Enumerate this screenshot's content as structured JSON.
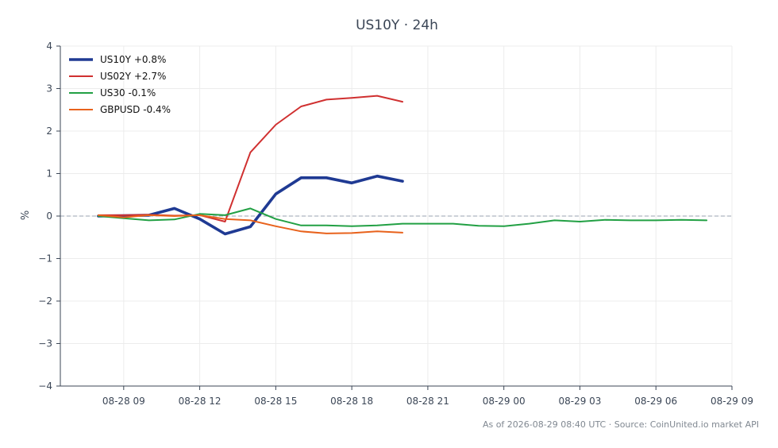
{
  "chart_data": {
    "type": "line",
    "title": "US10Y · 24h",
    "xlabel": "",
    "ylabel": "%",
    "ylim": [
      -4,
      4
    ],
    "xlim": [
      "2026-08-28 06:30",
      "2026-08-29 09:00"
    ],
    "x_ticks": [
      {
        "t": "2026-08-28 09:00",
        "label": "08-28 09"
      },
      {
        "t": "2026-08-28 12:00",
        "label": "08-28 12"
      },
      {
        "t": "2026-08-28 15:00",
        "label": "08-28 15"
      },
      {
        "t": "2026-08-28 18:00",
        "label": "08-28 18"
      },
      {
        "t": "2026-08-28 21:00",
        "label": "08-28 21"
      },
      {
        "t": "2026-08-29 00:00",
        "label": "08-29 00"
      },
      {
        "t": "2026-08-29 03:00",
        "label": "08-29 03"
      },
      {
        "t": "2026-08-29 06:00",
        "label": "08-29 06"
      },
      {
        "t": "2026-08-29 09:00",
        "label": "08-29 09"
      }
    ],
    "y_ticks": [
      4,
      3,
      2,
      1,
      0,
      -1,
      -2,
      -3,
      -4
    ],
    "y_tick_labels": [
      "4",
      "3",
      "2",
      "1",
      "0",
      "−1",
      "−2",
      "−3",
      "−4"
    ],
    "grid": true,
    "zero_line": true,
    "legend_position": "top-left",
    "series": [
      {
        "name": "US10Y +0.8%",
        "color": "#1f3a93",
        "emphasis": true,
        "x": [
          "2026-08-28 08:00",
          "2026-08-28 09:00",
          "2026-08-28 10:00",
          "2026-08-28 11:00",
          "2026-08-28 12:00",
          "2026-08-28 13:00",
          "2026-08-28 14:00",
          "2026-08-28 15:00",
          "2026-08-28 16:00",
          "2026-08-28 17:00",
          "2026-08-28 18:00",
          "2026-08-28 19:00",
          "2026-08-28 20:00"
        ],
        "values": [
          0.0,
          0.01,
          0.02,
          0.18,
          -0.07,
          -0.42,
          -0.25,
          0.52,
          0.9,
          0.9,
          0.78,
          0.94,
          0.82
        ]
      },
      {
        "name": "US02Y +2.7%",
        "color": "#d03030",
        "emphasis": false,
        "x": [
          "2026-08-28 08:00",
          "2026-08-28 09:00",
          "2026-08-28 10:00",
          "2026-08-28 11:00",
          "2026-08-28 12:00",
          "2026-08-28 13:00",
          "2026-08-28 14:00",
          "2026-08-28 15:00",
          "2026-08-28 16:00",
          "2026-08-28 17:00",
          "2026-08-28 18:00",
          "2026-08-28 19:00",
          "2026-08-28 20:00"
        ],
        "values": [
          0.02,
          0.02,
          0.03,
          0.01,
          0.02,
          -0.13,
          1.5,
          2.15,
          2.58,
          2.74,
          2.78,
          2.83,
          2.69
        ]
      },
      {
        "name": "US30 -0.1%",
        "color": "#22a044",
        "emphasis": false,
        "x": [
          "2026-08-28 08:00",
          "2026-08-28 09:00",
          "2026-08-28 10:00",
          "2026-08-28 11:00",
          "2026-08-28 12:00",
          "2026-08-28 13:00",
          "2026-08-28 14:00",
          "2026-08-28 15:00",
          "2026-08-28 16:00",
          "2026-08-28 17:00",
          "2026-08-28 18:00",
          "2026-08-28 19:00",
          "2026-08-28 20:00",
          "2026-08-28 21:00",
          "2026-08-28 22:00",
          "2026-08-28 23:00",
          "2026-08-29 00:00",
          "2026-08-29 01:00",
          "2026-08-29 02:00",
          "2026-08-29 03:00",
          "2026-08-29 04:00",
          "2026-08-29 05:00",
          "2026-08-29 06:00",
          "2026-08-29 07:00",
          "2026-08-29 08:00"
        ],
        "values": [
          0.0,
          -0.05,
          -0.1,
          -0.08,
          0.05,
          0.02,
          0.18,
          -0.07,
          -0.22,
          -0.22,
          -0.24,
          -0.22,
          -0.18,
          -0.18,
          -0.18,
          -0.23,
          -0.24,
          -0.18,
          -0.1,
          -0.13,
          -0.09,
          -0.1,
          -0.1,
          -0.09,
          -0.1
        ]
      },
      {
        "name": "GBPUSD -0.4%",
        "color": "#e8621c",
        "emphasis": false,
        "x": [
          "2026-08-28 08:00",
          "2026-08-28 09:00",
          "2026-08-28 10:00",
          "2026-08-28 11:00",
          "2026-08-28 12:00",
          "2026-08-28 13:00",
          "2026-08-28 14:00",
          "2026-08-28 15:00",
          "2026-08-28 16:00",
          "2026-08-28 17:00",
          "2026-08-28 18:00",
          "2026-08-28 19:00",
          "2026-08-28 20:00"
        ],
        "values": [
          0.02,
          -0.03,
          0.02,
          0.0,
          0.02,
          -0.07,
          -0.1,
          -0.24,
          -0.36,
          -0.41,
          -0.4,
          -0.36,
          -0.39
        ]
      }
    ],
    "footer": "As of 2026-08-29 08:40 UTC · Source: CoinUnited.io market API"
  }
}
